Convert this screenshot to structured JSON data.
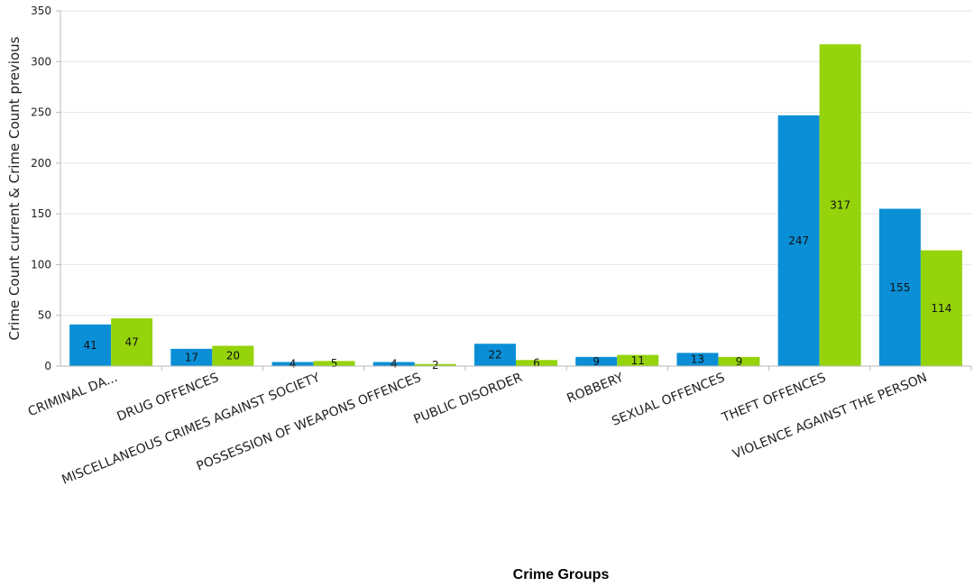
{
  "chart_data": {
    "type": "bar",
    "xlabel": "Crime Groups",
    "ylabel": "Crime Count current & Crime Count previous",
    "ylim": [
      0,
      350
    ],
    "yticks": [
      0,
      50,
      100,
      150,
      200,
      250,
      300,
      350
    ],
    "grid": true,
    "categories": [
      "CRIMINAL DA...",
      "DRUG OFFENCES",
      "MISCELLANEOUS CRIMES AGAINST SOCIETY",
      "POSSESSION OF WEAPONS OFFENCES",
      "PUBLIC DISORDER",
      "ROBBERY",
      "SEXUAL OFFENCES",
      "THEFT OFFENCES",
      "VIOLENCE AGAINST THE PERSON"
    ],
    "series": [
      {
        "color": "#0a8fd6",
        "values": [
          41,
          17,
          4,
          4,
          22,
          9,
          13,
          247,
          155
        ]
      },
      {
        "color": "#95d30a",
        "values": [
          47,
          20,
          5,
          2,
          6,
          11,
          9,
          317,
          114
        ]
      }
    ]
  }
}
